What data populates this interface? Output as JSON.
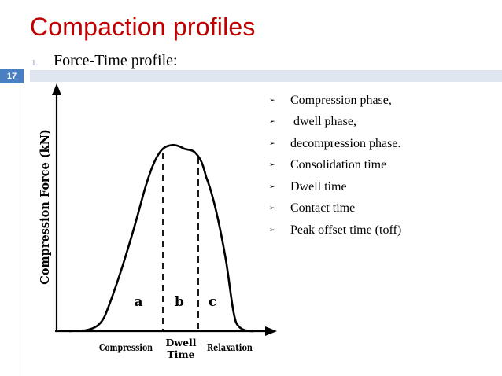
{
  "slide": {
    "title": "Compaction profiles",
    "number": "17",
    "subitem": {
      "number": "1.",
      "text": "Force-Time profile:"
    }
  },
  "diagram": {
    "ylabel": "Compression Force (kN)",
    "region_labels": [
      "a",
      "b",
      "c"
    ],
    "phase_labels": {
      "compression": "Compression",
      "dwell_line1": "Dwell",
      "dwell_line2": "Time",
      "relaxation": "Relaxation"
    }
  },
  "bullets": [
    "Compression phase,",
    " dwell phase,",
    "decompression phase.",
    "Consolidation time",
    "Dwell time",
    "Contact time",
    "Peak offset time (toff)"
  ],
  "colors": {
    "title": "#c00000",
    "slide_number_bg": "#4a7fc1",
    "band": "#dfe6f0"
  },
  "icons": {
    "bullet": "arrow-bullet-icon"
  }
}
